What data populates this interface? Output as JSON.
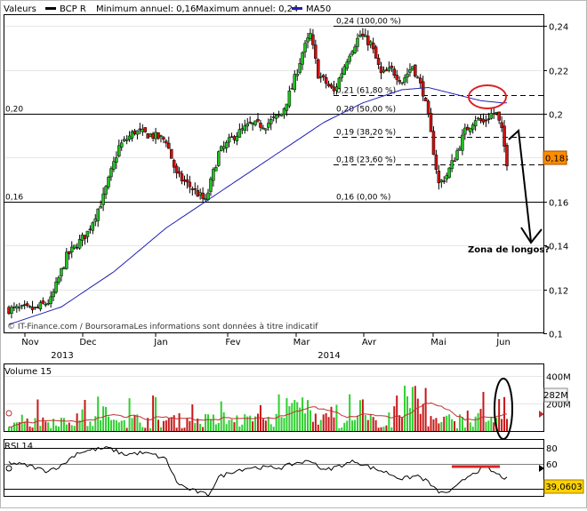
{
  "legend": {
    "valeurs_label": "Valeurs",
    "series_label": "BCP R",
    "min_label": "Minimum annuel: 0,16",
    "max_label": "Maximum annuel: 0,24",
    "ma_label": "MA50",
    "series_color": "#000000",
    "ma_color": "#1f1fb4"
  },
  "watermark": "© IT-Finance.com / BoursoramaLes informations sont données à titre indicatif",
  "annotation": "Zona de longos?",
  "chart_data": [
    {
      "type": "candlestick",
      "name": "price-panel",
      "ylim": [
        0.1,
        0.245
      ],
      "y_ticks": [
        {
          "v": 0.24,
          "label": "0,24"
        },
        {
          "v": 0.22,
          "label": "0,22"
        },
        {
          "v": 0.2,
          "label": "0,2"
        },
        {
          "v": 0.18,
          "label": "0,18"
        },
        {
          "v": 0.16,
          "label": "0,16"
        },
        {
          "v": 0.14,
          "label": "0,14"
        },
        {
          "v": 0.12,
          "label": "0,12"
        },
        {
          "v": 0.1,
          "label": "0,1"
        }
      ],
      "x_labels": [
        "Nov",
        "Dec",
        "Jan",
        "Fev",
        "Mar",
        "Avr",
        "Mai",
        "Jun"
      ],
      "year_labels": [
        "2013",
        "2014"
      ],
      "last_price_label": "0,18",
      "reference_lines": [
        {
          "v": 0.2,
          "label": "0,20"
        },
        {
          "v": 0.16,
          "label": "0,16"
        }
      ],
      "fibonacci": [
        {
          "v": 0.24,
          "label": "0,24 (100,00 %)"
        },
        {
          "v": 0.2085,
          "label": "0,21 (61,80 %)"
        },
        {
          "v": 0.2,
          "label": "0,20 (50,00 %)"
        },
        {
          "v": 0.1895,
          "label": "0,19 (38,20 %)"
        },
        {
          "v": 0.177,
          "label": "0,18 (23,60 %)"
        },
        {
          "v": 0.16,
          "label": "0,16 (0,00 %)"
        }
      ],
      "close_anchors": [
        [
          0,
          0.111
        ],
        [
          10,
          0.111
        ],
        [
          16,
          0.115
        ],
        [
          22,
          0.135
        ],
        [
          30,
          0.146
        ],
        [
          36,
          0.162
        ],
        [
          42,
          0.185
        ],
        [
          48,
          0.192
        ],
        [
          55,
          0.19
        ],
        [
          60,
          0.188
        ],
        [
          64,
          0.172
        ],
        [
          70,
          0.166
        ],
        [
          75,
          0.16
        ],
        [
          80,
          0.182
        ],
        [
          86,
          0.19
        ],
        [
          92,
          0.195
        ],
        [
          98,
          0.195
        ],
        [
          104,
          0.2
        ],
        [
          108,
          0.212
        ],
        [
          112,
          0.228
        ],
        [
          115,
          0.236
        ],
        [
          118,
          0.218
        ],
        [
          124,
          0.21
        ],
        [
          130,
          0.228
        ],
        [
          134,
          0.236
        ],
        [
          138,
          0.232
        ],
        [
          142,
          0.218
        ],
        [
          146,
          0.22
        ],
        [
          150,
          0.215
        ],
        [
          154,
          0.222
        ],
        [
          158,
          0.21
        ],
        [
          160,
          0.198
        ],
        [
          162,
          0.183
        ],
        [
          164,
          0.168
        ],
        [
          167,
          0.172
        ],
        [
          170,
          0.18
        ],
        [
          174,
          0.192
        ],
        [
          178,
          0.198
        ],
        [
          181,
          0.196
        ],
        [
          184,
          0.2
        ],
        [
          186,
          0.2
        ],
        [
          188,
          0.192
        ],
        [
          190,
          0.178
        ]
      ],
      "ma_anchors": [
        [
          0,
          0.104
        ],
        [
          20,
          0.112
        ],
        [
          40,
          0.128
        ],
        [
          60,
          0.148
        ],
        [
          75,
          0.16
        ],
        [
          90,
          0.172
        ],
        [
          105,
          0.184
        ],
        [
          120,
          0.196
        ],
        [
          135,
          0.205
        ],
        [
          150,
          0.211
        ],
        [
          160,
          0.212
        ],
        [
          170,
          0.209
        ],
        [
          180,
          0.206
        ],
        [
          188,
          0.205
        ]
      ]
    },
    {
      "type": "bar",
      "name": "volume-panel",
      "title": "Volume 15",
      "ylim": [
        0,
        480
      ],
      "y_ticks": [
        {
          "v": 400,
          "label": "400M"
        },
        {
          "v": 200,
          "label": "200M"
        }
      ],
      "last_value_label": "282M"
    },
    {
      "type": "line",
      "name": "rsi-panel",
      "title": "RSI 14",
      "ylim": [
        0,
        100
      ],
      "y_ticks": [
        {
          "v": 80,
          "label": "80"
        },
        {
          "v": 60,
          "label": "60"
        }
      ],
      "last_value_label": "39,0603",
      "rsi_anchors": [
        [
          0,
          62
        ],
        [
          8,
          58
        ],
        [
          14,
          52
        ],
        [
          20,
          58
        ],
        [
          26,
          74
        ],
        [
          32,
          78
        ],
        [
          38,
          80
        ],
        [
          44,
          72
        ],
        [
          50,
          74
        ],
        [
          55,
          72
        ],
        [
          60,
          66
        ],
        [
          64,
          38
        ],
        [
          68,
          30
        ],
        [
          72,
          26
        ],
        [
          76,
          22
        ],
        [
          80,
          44
        ],
        [
          86,
          52
        ],
        [
          92,
          56
        ],
        [
          98,
          56
        ],
        [
          104,
          56
        ],
        [
          110,
          62
        ],
        [
          116,
          64
        ],
        [
          120,
          52
        ],
        [
          126,
          58
        ],
        [
          132,
          64
        ],
        [
          138,
          56
        ],
        [
          144,
          50
        ],
        [
          150,
          42
        ],
        [
          156,
          46
        ],
        [
          160,
          38
        ],
        [
          163,
          28
        ],
        [
          166,
          24
        ],
        [
          170,
          30
        ],
        [
          176,
          48
        ],
        [
          182,
          56
        ],
        [
          186,
          48
        ],
        [
          190,
          42
        ]
      ]
    }
  ]
}
